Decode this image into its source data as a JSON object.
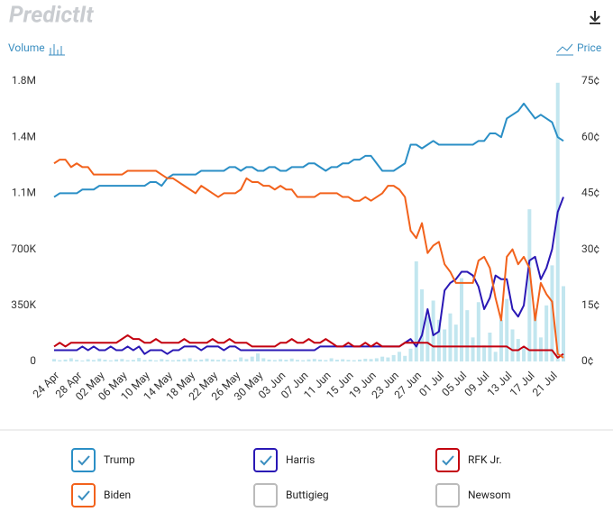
{
  "header": {
    "logo": "PredictIt"
  },
  "chart_data": {
    "type": "combo",
    "y2_label": "Price",
    "categories": [
      "24 Apr",
      null,
      null,
      null,
      "28 Apr",
      null,
      null,
      null,
      "02 May",
      null,
      null,
      null,
      "06 May",
      null,
      null,
      null,
      "10 May",
      null,
      null,
      null,
      "14 May",
      null,
      null,
      null,
      "18 May",
      null,
      null,
      null,
      "22 May",
      null,
      null,
      null,
      "26 May",
      null,
      null,
      null,
      "30 May",
      null,
      null,
      null,
      "03 Jun",
      null,
      null,
      null,
      "07 Jun",
      null,
      null,
      null,
      "11 Jun",
      null,
      null,
      null,
      "15 Jun",
      null,
      null,
      null,
      "19 Jun",
      null,
      null,
      null,
      "23 Jun",
      null,
      null,
      null,
      "27 Jun",
      null,
      null,
      null,
      "01 Jul",
      null,
      null,
      null,
      "05 Jul",
      null,
      null,
      null,
      "09 Jul",
      null,
      null,
      null,
      "13 Jul",
      null,
      null,
      null,
      "17 Jul",
      null,
      null,
      null,
      "21 Jul",
      null,
      null
    ],
    "ylim": [
      0,
      1750000
    ],
    "yticks": [
      0,
      {
        "value": 350000,
        "label": "350K"
      },
      {
        "value": 700000,
        "label": "700K"
      },
      {
        "value": 1050000,
        "label": "1.1M"
      },
      {
        "value": 1400000,
        "label": "1.4M"
      },
      {
        "value": 1750000,
        "label": "1.8M"
      }
    ],
    "y2lim": [
      0,
      75
    ],
    "y2ticks": [
      {
        "value": 0,
        "label": "0¢"
      },
      {
        "value": 15,
        "label": "15¢"
      },
      {
        "value": 30,
        "label": "30¢"
      },
      {
        "value": 45,
        "label": "45¢"
      },
      {
        "value": 60,
        "label": "60¢"
      },
      {
        "value": 75,
        "label": "75¢"
      }
    ],
    "series": [
      {
        "name": "Volume",
        "type": "bar",
        "color": "#c2e6ef",
        "values": [
          15000,
          8000,
          12000,
          20000,
          10000,
          6000,
          14000,
          9000,
          18000,
          11000,
          7000,
          13000,
          16000,
          8000,
          10000,
          22000,
          9000,
          12000,
          7000,
          15000,
          10000,
          8000,
          11000,
          14000,
          20000,
          9000,
          12000,
          18000,
          13000,
          10000,
          16000,
          8000,
          11000,
          25000,
          15000,
          30000,
          50000,
          20000,
          12000,
          9000,
          14000,
          11000,
          18000,
          10000,
          8000,
          13000,
          16000,
          12000,
          9000,
          20000,
          11000,
          14000,
          10000,
          8000,
          12000,
          17000,
          15000,
          20000,
          30000,
          25000,
          40000,
          60000,
          35000,
          80000,
          625000,
          450000,
          280000,
          380000,
          260000,
          200000,
          300000,
          230000,
          520000,
          320000,
          150000,
          370000,
          100000,
          180000,
          60000,
          260000,
          390000,
          200000,
          140000,
          90000,
          950000,
          330000,
          150000,
          350000,
          600000,
          1740000,
          470000
        ]
      },
      {
        "name": "Trump",
        "axis": "y2",
        "color": "#2b8fc6",
        "visible": true,
        "values": [
          44,
          45,
          45,
          45,
          45,
          46,
          46,
          46,
          47,
          47,
          47,
          47,
          47,
          47,
          47,
          47,
          47,
          48,
          48,
          47,
          49,
          50,
          50,
          50,
          50,
          50,
          51,
          51,
          51,
          51,
          51,
          52,
          52,
          51,
          52,
          52,
          51,
          51,
          52,
          52,
          51,
          51,
          52,
          52,
          52,
          53,
          53,
          52,
          51,
          52,
          52,
          53,
          53,
          54,
          54,
          55,
          55,
          53,
          51,
          51,
          51,
          52,
          53,
          58,
          58,
          57,
          58,
          59,
          58,
          58,
          58,
          58,
          58,
          58,
          58,
          59,
          59,
          61,
          61,
          60,
          65,
          66,
          67,
          69,
          67,
          65,
          66,
          65,
          64,
          60,
          59
        ]
      },
      {
        "name": "Harris",
        "axis": "y2",
        "color": "#2a18b5",
        "visible": true,
        "values": [
          3,
          3,
          3,
          3,
          3,
          4,
          3,
          4,
          3,
          3,
          4,
          3,
          3,
          4,
          3,
          4,
          2,
          3,
          3,
          3,
          2,
          3,
          3,
          4,
          4,
          4,
          3,
          4,
          4,
          4,
          3,
          4,
          4,
          3,
          3,
          3,
          3,
          3,
          3,
          3,
          3,
          3,
          3,
          3,
          3,
          3,
          3,
          4,
          4,
          4,
          4,
          4,
          4,
          4,
          4,
          4,
          4,
          4,
          4,
          4,
          4,
          4,
          5,
          6,
          4,
          7,
          14,
          7,
          8,
          19,
          21,
          22,
          24,
          24,
          23,
          20,
          14,
          17,
          23,
          22,
          22,
          14,
          12,
          15,
          27,
          28,
          22,
          25,
          30,
          40,
          44
        ]
      },
      {
        "name": "RFK Jr.",
        "axis": "y2",
        "color": "#c3000f",
        "visible": true,
        "values": [
          4,
          5,
          4,
          5,
          5,
          5,
          5,
          5,
          5,
          5,
          5,
          5,
          6,
          7,
          6,
          6,
          5,
          5,
          6,
          5,
          5,
          5,
          5,
          6,
          5,
          5,
          5,
          5,
          6,
          5,
          5,
          6,
          5,
          5,
          5,
          4,
          4,
          4,
          4,
          4,
          5,
          5,
          6,
          5,
          5,
          6,
          5,
          5,
          6,
          5,
          4,
          4,
          5,
          4,
          4,
          5,
          4,
          5,
          4,
          4,
          4,
          4,
          5,
          5,
          5,
          5,
          5,
          4,
          4,
          4,
          4,
          4,
          4,
          4,
          4,
          4,
          4,
          4,
          4,
          4,
          4,
          3,
          3,
          4,
          3,
          3,
          3,
          3,
          3,
          1,
          2
        ]
      },
      {
        "name": "Biden",
        "axis": "y2",
        "color": "#f2621c",
        "visible": true,
        "values": [
          53,
          54,
          54,
          52,
          53,
          52,
          52,
          50,
          50,
          50,
          50,
          50,
          50,
          51,
          51,
          51,
          51,
          51,
          51,
          50,
          49,
          49,
          48,
          47,
          46,
          45,
          47,
          46,
          45,
          44,
          45,
          45,
          45,
          46,
          49,
          48,
          48,
          47,
          47,
          46,
          47,
          46,
          46,
          44,
          44,
          44,
          44,
          45,
          45,
          45,
          45,
          44,
          44,
          43,
          43,
          44,
          43,
          44,
          45,
          47,
          47,
          46,
          44,
          35,
          33,
          37,
          29,
          31,
          32,
          26,
          24,
          21,
          21,
          21,
          21,
          27,
          28,
          25,
          17,
          11,
          28,
          30,
          26,
          28,
          25,
          11,
          21,
          18,
          16,
          2,
          1
        ]
      },
      {
        "name": "Buttigieg",
        "axis": "y2",
        "color": "#aaaaaa",
        "visible": false
      },
      {
        "name": "Newsom",
        "axis": "y2",
        "color": "#aaaaaa",
        "visible": false
      }
    ]
  }
}
